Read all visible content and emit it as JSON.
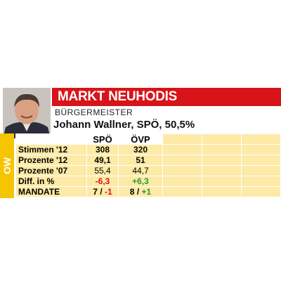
{
  "header": {
    "title": "MARKT NEUHODIS",
    "subtitle": "BÜRGERMEISTER",
    "mayor": "Johann Wallner, SPÖ, 50,5%",
    "side_label": "OW"
  },
  "table": {
    "columns": [
      "SPÖ",
      "ÖVP"
    ],
    "rows": [
      [
        "Stimmen '12",
        "308",
        "320"
      ],
      [
        "Prozente '12",
        "49,1",
        "51"
      ],
      [
        "Prozente '07",
        "55,4",
        "44,7"
      ],
      [
        "Diff. in %",
        "-6,3",
        "+6,3"
      ],
      [
        "MANDATE",
        [
          "7",
          "/",
          "-1"
        ],
        [
          "8",
          "/",
          "+1"
        ]
      ]
    ]
  }
}
